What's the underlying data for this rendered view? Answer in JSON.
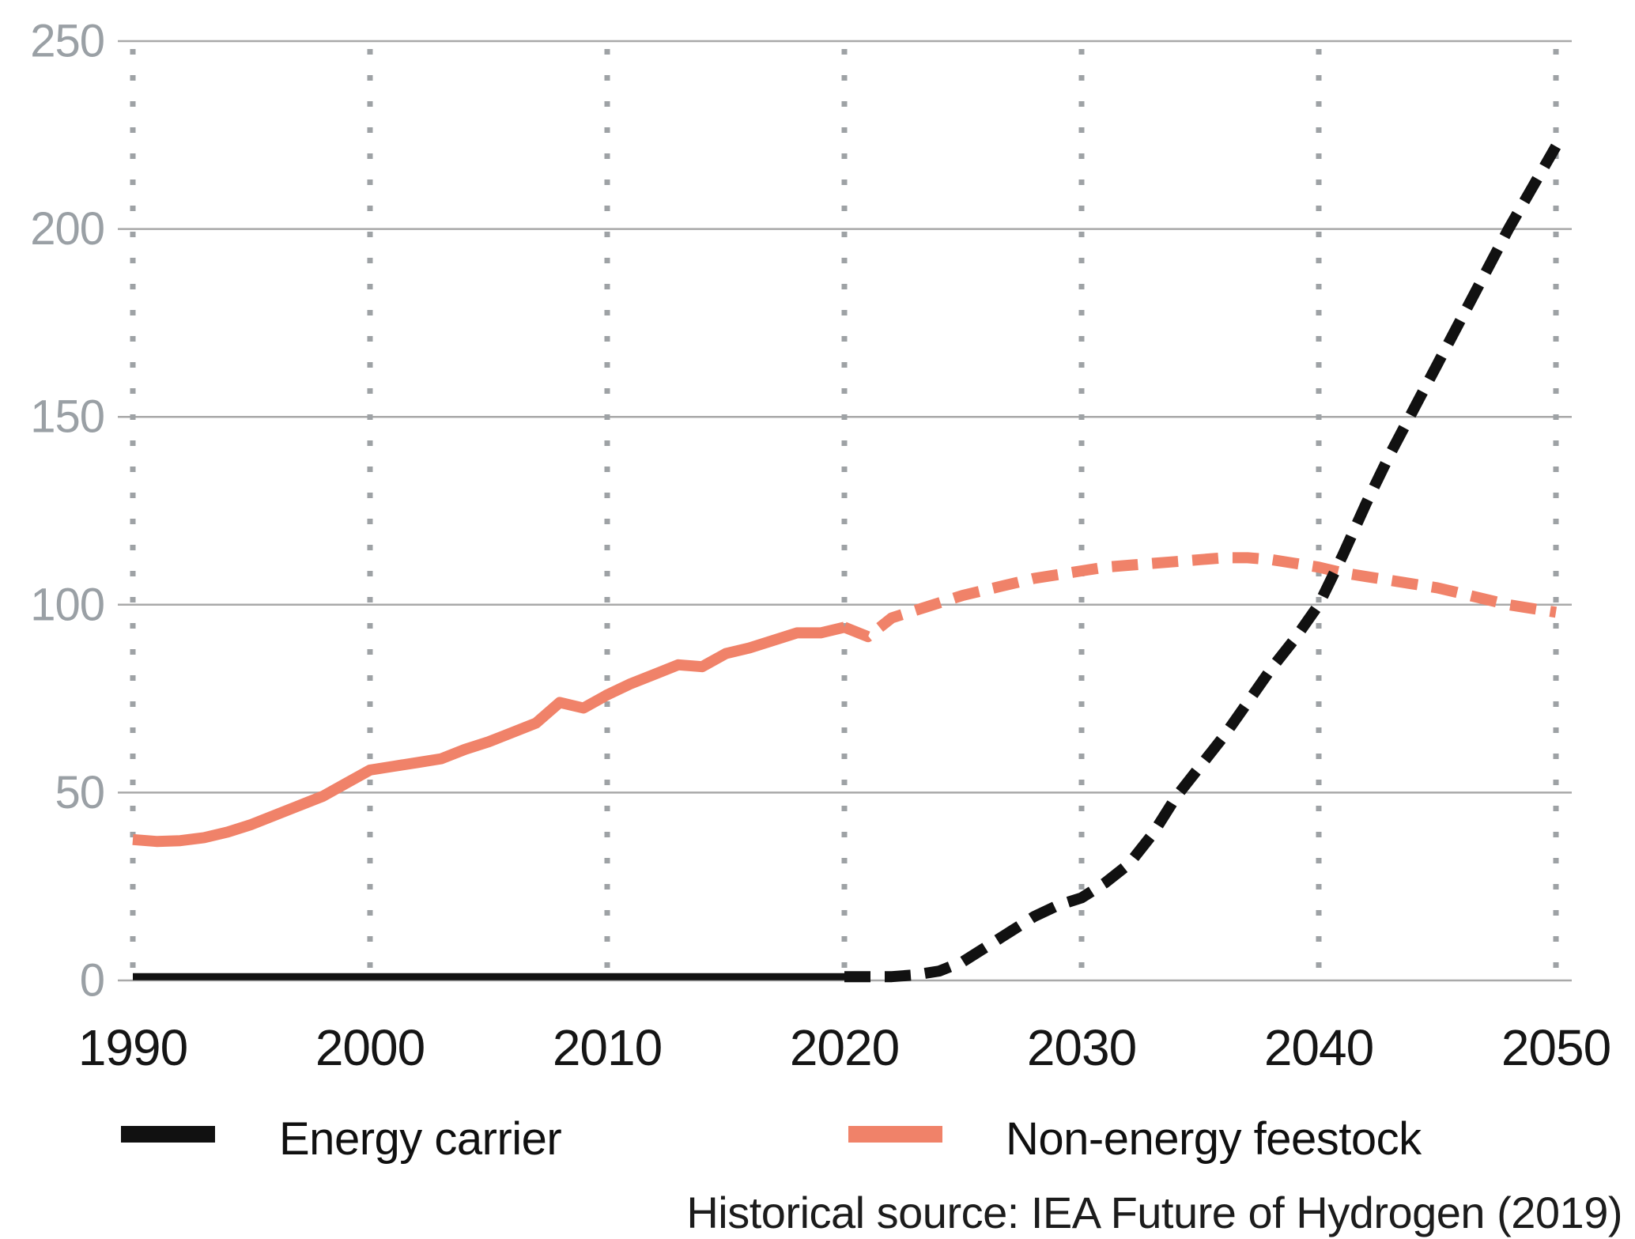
{
  "chart_data": {
    "type": "line",
    "title": "",
    "xlabel": "",
    "ylabel": "",
    "xlim": [
      1990,
      2050
    ],
    "ylim": [
      0,
      250
    ],
    "x_ticks": [
      1990,
      2000,
      2010,
      2020,
      2030,
      2040,
      2050
    ],
    "y_ticks": [
      0,
      50,
      100,
      150,
      200,
      250
    ],
    "grid": {
      "horizontal": "solid",
      "vertical": "dotted"
    },
    "colors": {
      "energy_carrier": "#111111",
      "non_energy_feestock": "#F08269",
      "gridline": "#a9a9a9",
      "y_tick_label": "#9aa0a5",
      "x_tick_label": "#151515"
    },
    "series": [
      {
        "name": "Non-energy feestock (historical)",
        "style": "solid",
        "color": "#F08269",
        "x": [
          1990,
          1991,
          1992,
          1993,
          1994,
          1995,
          1996,
          1997,
          1998,
          1999,
          2000,
          2001,
          2002,
          2003,
          2004,
          2005,
          2006,
          2007,
          2008,
          2009,
          2010,
          2011,
          2012,
          2013,
          2014,
          2015,
          2016,
          2017,
          2018,
          2019,
          2020
        ],
        "values": [
          37.5,
          37,
          37.2,
          38,
          39.5,
          41.5,
          44,
          46.5,
          49,
          52.5,
          56,
          57,
          58,
          59,
          61.5,
          63.5,
          66,
          68.5,
          74,
          72.5,
          76,
          79,
          81.5,
          84,
          83.5,
          87,
          88.5,
          90.5,
          92.5,
          92.5,
          94
        ]
      },
      {
        "name": "Non-energy feestock (projection)",
        "style": "dashed",
        "color": "#F08269",
        "x": [
          2020,
          2021,
          2022,
          2023,
          2024,
          2025,
          2026,
          2027,
          2028,
          2029,
          2030,
          2031,
          2032,
          2033,
          2034,
          2035,
          2036,
          2037,
          2038,
          2039,
          2040,
          2041,
          2042,
          2043,
          2044,
          2045,
          2046,
          2047,
          2048,
          2049,
          2050
        ],
        "values": [
          94,
          91.5,
          96.5,
          98.5,
          100.5,
          102.5,
          104,
          105.5,
          107,
          108,
          109,
          110,
          110.5,
          111,
          111.5,
          112,
          112.5,
          112.5,
          112,
          111,
          110,
          108.5,
          107.5,
          106.5,
          105.5,
          104.5,
          103,
          101.5,
          100,
          99,
          98
        ]
      },
      {
        "name": "Energy carrier (historical)",
        "style": "solid",
        "color": "#111111",
        "x": [
          1990,
          1995,
          2000,
          2005,
          2010,
          2015,
          2020
        ],
        "values": [
          1,
          1,
          1,
          1,
          1,
          1,
          1
        ]
      },
      {
        "name": "Energy carrier (projection)",
        "style": "dashed",
        "color": "#111111",
        "x": [
          2020,
          2021,
          2022,
          2023,
          2024,
          2025,
          2026,
          2027,
          2028,
          2029,
          2030,
          2031,
          2032,
          2033,
          2034,
          2035,
          2036,
          2037,
          2038,
          2039,
          2040,
          2041,
          2042,
          2043,
          2044,
          2045,
          2046,
          2047,
          2048,
          2049,
          2050
        ],
        "values": [
          1,
          1,
          1,
          1.5,
          2.5,
          5,
          9,
          13,
          17,
          20,
          22,
          26,
          31,
          39,
          49,
          57,
          65,
          74,
          83,
          91,
          100,
          113,
          127,
          140,
          152,
          164,
          176,
          188,
          200,
          211,
          222
        ]
      }
    ],
    "legend": [
      {
        "label": "Energy carrier",
        "color": "#111111"
      },
      {
        "label": "Non-energy feestock",
        "color": "#F08269"
      }
    ],
    "legend_position": "bottom",
    "caption": "Historical source: IEA Future of Hydrogen (2019)"
  }
}
